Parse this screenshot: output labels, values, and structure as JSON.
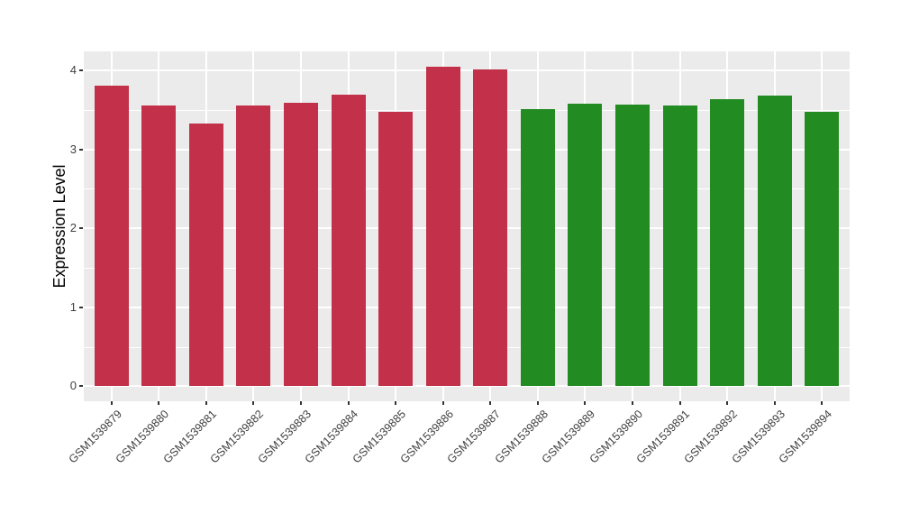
{
  "chart_data": {
    "type": "bar",
    "title": "",
    "xlabel": "",
    "ylabel": "Expression Level",
    "categories": [
      "GSM1539879",
      "GSM1539880",
      "GSM1539881",
      "GSM1539882",
      "GSM1539883",
      "GSM1539884",
      "GSM1539885",
      "GSM1539886",
      "GSM1539887",
      "GSM1539888",
      "GSM1539889",
      "GSM1539890",
      "GSM1539891",
      "GSM1539892",
      "GSM1539893",
      "GSM1539894"
    ],
    "values": [
      3.81,
      3.55,
      3.33,
      3.56,
      3.59,
      3.69,
      3.48,
      4.05,
      4.01,
      3.51,
      3.58,
      3.57,
      3.55,
      3.64,
      3.68,
      3.48
    ],
    "bar_colors": [
      "#C23149",
      "#C23149",
      "#C23149",
      "#C23149",
      "#C23149",
      "#C23149",
      "#C23149",
      "#C23149",
      "#C23149",
      "#228B22",
      "#228B22",
      "#228B22",
      "#228B22",
      "#228B22",
      "#228B22",
      "#228B22"
    ],
    "group_colors": {
      "samples_1_to_9": "#C23149",
      "samples_10_to_16": "#228B22"
    },
    "yticks": [
      0,
      1,
      2,
      3,
      4
    ],
    "minor_yticks": [
      0.5,
      1.5,
      2.5,
      3.5
    ],
    "ylim": [
      -0.19,
      4.24
    ],
    "grid": true,
    "legend_position": "none",
    "x_tick_rotation_deg": 45,
    "style": {
      "panel_background": "#EBEBEB",
      "grid_color": "#FFFFFF",
      "tick_color": "#333333",
      "tick_label_color": "#404040",
      "axis_title_color": "#000000"
    }
  }
}
